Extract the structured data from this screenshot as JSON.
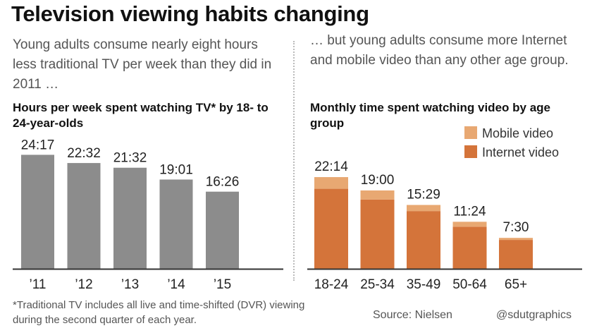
{
  "title": "Television viewing habits changing",
  "left_subtitle": "Young adults consume nearly eight hours less traditional TV per week than they did in 2011 …",
  "right_subtitle": "… but young adults consume more Internet and mobile video than any other age group.",
  "footnote": "*Traditional TV includes all live and time-shifted (DVR) viewing during the second quarter of each year.",
  "source": "Source: Nielsen",
  "credit": "@sdutgraphics",
  "colors": {
    "tv_bar": "#8c8c8c",
    "mobile": "#e8a872",
    "internet": "#d4743a",
    "axis": "#333333"
  },
  "chart_data": [
    {
      "type": "bar",
      "title": "Hours per week spent watching TV* by 18- to 24-year-olds",
      "categories": [
        "’11",
        "’12",
        "’13",
        "’14",
        "’15"
      ],
      "values": [
        24.283,
        22.533,
        21.533,
        19.017,
        16.433
      ],
      "labels": [
        "24:17",
        "22:32",
        "21:32",
        "19:01",
        "16:26"
      ],
      "xlabel": "",
      "ylabel": "",
      "ylim": [
        0,
        26
      ],
      "grid": false
    },
    {
      "type": "bar",
      "stacked": true,
      "title": "Monthly time spent watching video by age group",
      "categories": [
        "18-24",
        "25-34",
        "35-49",
        "50-64",
        "65+"
      ],
      "series": [
        {
          "name": "Internet video",
          "values": [
            19.4,
            16.8,
            14.0,
            10.2,
            7.0
          ]
        },
        {
          "name": "Mobile video",
          "values": [
            2.83,
            2.2,
            1.48,
            1.2,
            0.5
          ]
        }
      ],
      "totals": [
        22.233,
        19.0,
        15.483,
        11.4,
        7.5
      ],
      "labels": [
        "22:14",
        "19:00",
        "15:29",
        "11:24",
        "7:30"
      ],
      "legend": "top-right",
      "ylim": [
        0,
        26
      ],
      "grid": false
    }
  ]
}
